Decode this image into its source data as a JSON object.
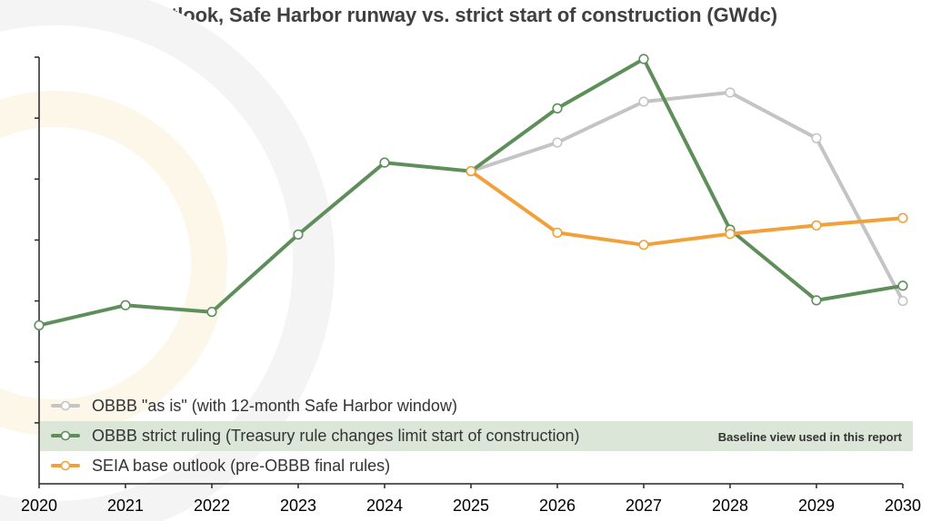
{
  "title": "US installation outlook, Safe Harbor runway vs. strict start of construction (GWdc)",
  "colors": {
    "as_is": "#c4c4c4",
    "strict": "#5e8f5a",
    "seia": "#f2a03a",
    "highlight": "#dbe6d9",
    "axis": "#262626",
    "background_ring": "#f4f4f4",
    "background_ring_warm": "#fdf7ea"
  },
  "chart_data": {
    "type": "line",
    "title": "US installation outlook, Safe Harbor runway vs. strict start of construction (GWdc)",
    "x": [
      "2020",
      "2021",
      "2022",
      "2023",
      "2024",
      "2025",
      "2026",
      "2027",
      "2028",
      "2029",
      "2030"
    ],
    "ylim": [
      0,
      7
    ],
    "yticks": [
      1,
      2,
      3,
      4,
      5,
      6,
      7
    ],
    "ytick_labels_shown": false,
    "grid": false,
    "legend_position": "bottom-left",
    "series": [
      {
        "name": "OBBB \"as is\" (with 12-month Safe Harbor window)",
        "color_key": "as_is",
        "values": [
          null,
          null,
          null,
          null,
          null,
          5.13,
          5.6,
          6.27,
          6.42,
          5.67,
          3.0
        ]
      },
      {
        "name": "OBBB strict ruling (Treasury rule changes limit start of construction)",
        "color_key": "strict",
        "values": [
          2.6,
          2.93,
          2.82,
          4.09,
          5.27,
          5.13,
          6.16,
          6.97,
          4.17,
          3.01,
          3.25
        ]
      },
      {
        "name": "SEIA base outlook (pre-OBBB final rules)",
        "color_key": "seia",
        "values": [
          null,
          null,
          null,
          null,
          null,
          5.13,
          4.12,
          3.92,
          4.1,
          4.24,
          4.36
        ]
      }
    ],
    "annotations": [
      {
        "text": "Baseline view used in this report",
        "attached_to": "OBBB strict ruling (Treasury rule changes limit start of construction)"
      }
    ]
  }
}
